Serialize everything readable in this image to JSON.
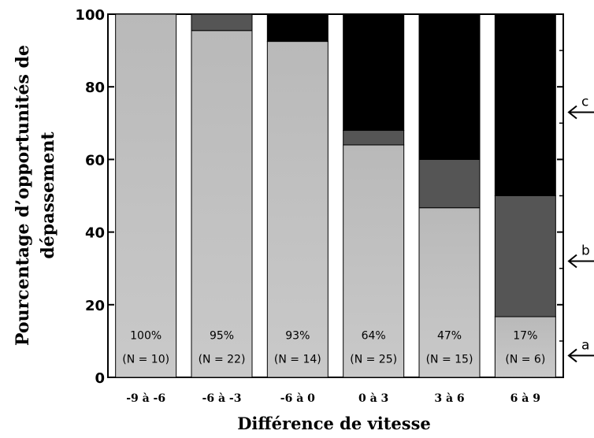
{
  "chart_data": {
    "type": "bar",
    "stacked": true,
    "xlabel": "Différence de vitesse",
    "ylabel_lines": [
      "Pourcentage d’opportunités de",
      "dépassement"
    ],
    "ylim": [
      0,
      100
    ],
    "yticks": [
      "0",
      "20",
      "40",
      "60",
      "80",
      "100"
    ],
    "categories": [
      "-9 à -6",
      "-6 à -3",
      "-6 à 0",
      "0 à 3",
      "3 à 6",
      "6 à 9"
    ],
    "series": [
      {
        "values": [
          100,
          95.5,
          92.5,
          64,
          46.7,
          16.7
        ],
        "color": "#c4c4c4"
      },
      {
        "values": [
          0,
          4.5,
          0,
          4,
          13.3,
          33.3
        ],
        "color": "#555555"
      },
      {
        "values": [
          0,
          0,
          7.5,
          32,
          40,
          50
        ],
        "color": "#000000"
      }
    ],
    "bar_labels": [
      {
        "pct": "100%",
        "n": "(N = 10)"
      },
      {
        "pct": "95%",
        "n": "(N = 22)"
      },
      {
        "pct": "93%",
        "n": "(N = 14)"
      },
      {
        "pct": "64%",
        "n": "(N = 25)"
      },
      {
        "pct": "47%",
        "n": "(N = 15)"
      },
      {
        "pct": "17%",
        "n": "(N = 6)"
      }
    ],
    "annotations": [
      {
        "label": "a",
        "y": 6
      },
      {
        "label": "b",
        "y": 32
      },
      {
        "label": "c",
        "y": 73
      }
    ]
  }
}
